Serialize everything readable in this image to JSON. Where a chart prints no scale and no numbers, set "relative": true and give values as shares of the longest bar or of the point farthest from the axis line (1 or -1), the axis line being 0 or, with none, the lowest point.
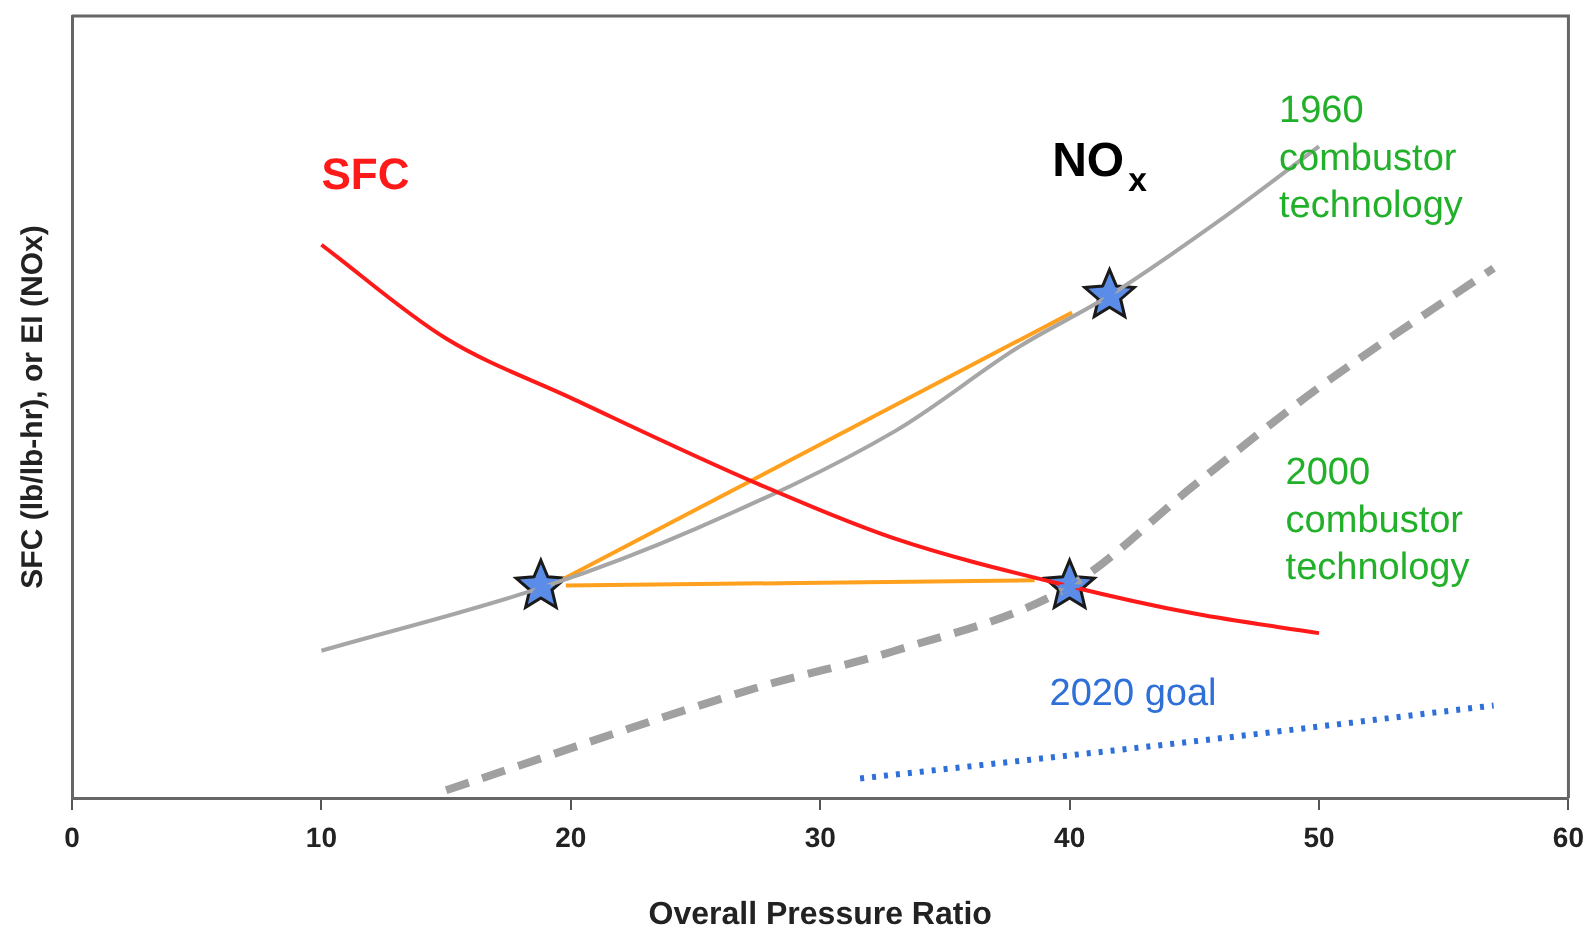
{
  "chart_data": {
    "type": "line",
    "relative": true,
    "xlabel": "Overall Pressure Ratio",
    "ylabel": "SFC (lb/lb-hr), or EI (NOx)",
    "xlim": [
      0,
      60
    ],
    "xticks": [
      0,
      10,
      20,
      30,
      40,
      50,
      60
    ],
    "grid": false,
    "legend": false,
    "annotations": [
      "NO$_{x}$"
    ],
    "series": [
      {
        "name": "SFC",
        "color": "#ff1a1a",
        "line_style": "solid",
        "marker": "none",
        "x": [
          10,
          15,
          20,
          27.5,
          33,
          40,
          45,
          50
        ],
        "values": [
          0.849,
          0.705,
          0.614,
          0.482,
          0.398,
          0.325,
          0.283,
          0.253
        ]
      },
      {
        "name": "1960 combustor technology",
        "color": "#a6a6a6",
        "line_style": "solid",
        "marker": "none",
        "x": [
          10,
          19,
          25,
          33,
          38,
          41.6,
          46,
          50
        ],
        "values": [
          0.226,
          0.325,
          0.413,
          0.563,
          0.693,
          0.771,
          0.886,
          1.0
        ]
      },
      {
        "name": "2000 combustor technology",
        "color": "#a0a0a0",
        "line_style": "dashed",
        "marker": "none",
        "x": [
          15,
          27.7,
          33,
          40,
          45,
          50,
          57
        ],
        "values": [
          0.012,
          0.172,
          0.226,
          0.325,
          0.48,
          0.63,
          0.813
        ]
      },
      {
        "name": "2020 goal",
        "color": "#2e6fd8",
        "line_style": "dotted",
        "marker": "none",
        "x": [
          31.6,
          45,
          57
        ],
        "values": [
          0.03,
          0.087,
          0.142
        ]
      },
      {
        "color": "#ffa01e",
        "line_style": "solid",
        "marker": "none",
        "x": [
          19.7,
          40.1
        ],
        "values": [
          0.336,
          0.745
        ]
      },
      {
        "color": "#ffa01e",
        "line_style": "solid",
        "marker": "none",
        "x": [
          19.8,
          38.6
        ],
        "values": [
          0.326,
          0.334
        ]
      },
      {
        "type": "scatter",
        "color": "#5b8de8",
        "marker": "star",
        "x": [
          18.8,
          40,
          41.6
        ],
        "values": [
          0.325,
          0.325,
          0.771
        ]
      }
    ]
  }
}
